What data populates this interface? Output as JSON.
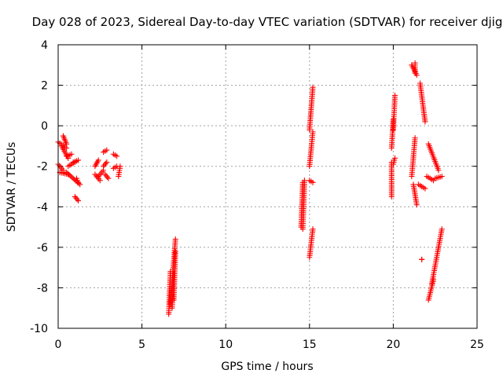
{
  "chart_data": {
    "type": "scatter",
    "title": "Day 028 of 2023, Sidereal Day-to-day VTEC variation (SDTVAR) for receiver djig",
    "xlabel": "GPS time / hours",
    "ylabel": "SDTVAR / TECUs",
    "xlim": [
      0,
      25
    ],
    "ylim": [
      -10,
      4
    ],
    "xticks": [
      "0",
      "5",
      "10",
      "15",
      "20",
      "25"
    ],
    "yticks": [
      "-10",
      "-8",
      "-6",
      "-4",
      "-2",
      "0",
      "2",
      "4"
    ],
    "grid": true,
    "marker": "+",
    "color": "#ff0000",
    "segments": [
      {
        "x0": 0.0,
        "y0": -0.8,
        "x1": 0.5,
        "y1": -1.1
      },
      {
        "x0": 0.2,
        "y0": -1.0,
        "x1": 0.6,
        "y1": -1.6
      },
      {
        "x0": 0.1,
        "y0": -2.3,
        "x1": 0.6,
        "y1": -2.4
      },
      {
        "x0": 0.0,
        "y0": -1.9,
        "x1": 0.3,
        "y1": -2.2
      },
      {
        "x0": 0.3,
        "y0": -0.5,
        "x1": 0.5,
        "y1": -0.9
      },
      {
        "x0": 0.5,
        "y0": -1.5,
        "x1": 0.8,
        "y1": -1.4
      },
      {
        "x0": 0.5,
        "y0": -2.3,
        "x1": 1.3,
        "y1": -2.9
      },
      {
        "x0": 0.6,
        "y0": -2.0,
        "x1": 1.0,
        "y1": -1.8
      },
      {
        "x0": 0.9,
        "y0": -1.8,
        "x1": 1.2,
        "y1": -1.7
      },
      {
        "x0": 1.0,
        "y0": -3.5,
        "x1": 1.2,
        "y1": -3.7
      },
      {
        "x0": 1.1,
        "y0": -2.6,
        "x1": 1.2,
        "y1": -2.8
      },
      {
        "x0": 2.2,
        "y0": -2.4,
        "x1": 2.5,
        "y1": -2.7
      },
      {
        "x0": 2.2,
        "y0": -2.0,
        "x1": 2.4,
        "y1": -1.7
      },
      {
        "x0": 2.4,
        "y0": -2.5,
        "x1": 2.7,
        "y1": -2.2
      },
      {
        "x0": 2.7,
        "y0": -1.3,
        "x1": 2.9,
        "y1": -1.2
      },
      {
        "x0": 2.7,
        "y0": -2.0,
        "x1": 2.9,
        "y1": -1.8
      },
      {
        "x0": 2.8,
        "y0": -2.4,
        "x1": 3.0,
        "y1": -2.6
      },
      {
        "x0": 3.3,
        "y0": -1.4,
        "x1": 3.5,
        "y1": -1.5
      },
      {
        "x0": 3.3,
        "y0": -2.1,
        "x1": 3.5,
        "y1": -2.0
      },
      {
        "x0": 3.6,
        "y0": -2.5,
        "x1": 3.7,
        "y1": -2.0
      },
      {
        "x0": 6.6,
        "y0": -9.3,
        "x1": 6.7,
        "y1": -7.2
      },
      {
        "x0": 6.7,
        "y0": -8.8,
        "x1": 7.0,
        "y1": -5.6
      },
      {
        "x0": 6.8,
        "y0": -9.0,
        "x1": 6.9,
        "y1": -7.3
      },
      {
        "x0": 6.9,
        "y0": -8.6,
        "x1": 7.0,
        "y1": -6.2
      },
      {
        "x0": 14.5,
        "y0": -5.0,
        "x1": 14.6,
        "y1": -2.8
      },
      {
        "x0": 14.6,
        "y0": -5.1,
        "x1": 14.7,
        "y1": -2.7
      },
      {
        "x0": 15.0,
        "y0": -2.7,
        "x1": 15.2,
        "y1": -2.8
      },
      {
        "x0": 15.0,
        "y0": -6.5,
        "x1": 15.2,
        "y1": -5.1
      },
      {
        "x0": 15.0,
        "y0": -2.0,
        "x1": 15.2,
        "y1": -0.3
      },
      {
        "x0": 15.0,
        "y0": -0.2,
        "x1": 15.2,
        "y1": 1.9
      },
      {
        "x0": 19.9,
        "y0": -3.5,
        "x1": 19.9,
        "y1": -1.8
      },
      {
        "x0": 19.9,
        "y0": -1.1,
        "x1": 20.0,
        "y1": 0.3
      },
      {
        "x0": 20.0,
        "y0": -0.2,
        "x1": 20.1,
        "y1": 1.5
      },
      {
        "x0": 20.0,
        "y0": -1.9,
        "x1": 20.1,
        "y1": -1.6
      },
      {
        "x0": 21.1,
        "y0": -2.5,
        "x1": 21.3,
        "y1": -0.6
      },
      {
        "x0": 21.2,
        "y0": -2.9,
        "x1": 21.4,
        "y1": -3.9
      },
      {
        "x0": 21.1,
        "y0": 3.0,
        "x1": 21.4,
        "y1": 2.5
      },
      {
        "x0": 21.3,
        "y0": 3.1,
        "x1": 21.3,
        "y1": 2.6
      },
      {
        "x0": 21.6,
        "y0": 2.1,
        "x1": 21.9,
        "y1": 0.2
      },
      {
        "x0": 21.5,
        "y0": -2.9,
        "x1": 21.9,
        "y1": -3.1
      },
      {
        "x0": 21.7,
        "y0": -6.6,
        "x1": 21.7,
        "y1": -6.6
      },
      {
        "x0": 22.1,
        "y0": -0.9,
        "x1": 22.7,
        "y1": -2.2
      },
      {
        "x0": 22.0,
        "y0": -2.5,
        "x1": 22.4,
        "y1": -2.7
      },
      {
        "x0": 22.5,
        "y0": -2.6,
        "x1": 22.9,
        "y1": -2.5
      },
      {
        "x0": 22.1,
        "y0": -8.6,
        "x1": 22.4,
        "y1": -7.6
      },
      {
        "x0": 22.3,
        "y0": -7.8,
        "x1": 22.9,
        "y1": -5.1
      }
    ]
  }
}
